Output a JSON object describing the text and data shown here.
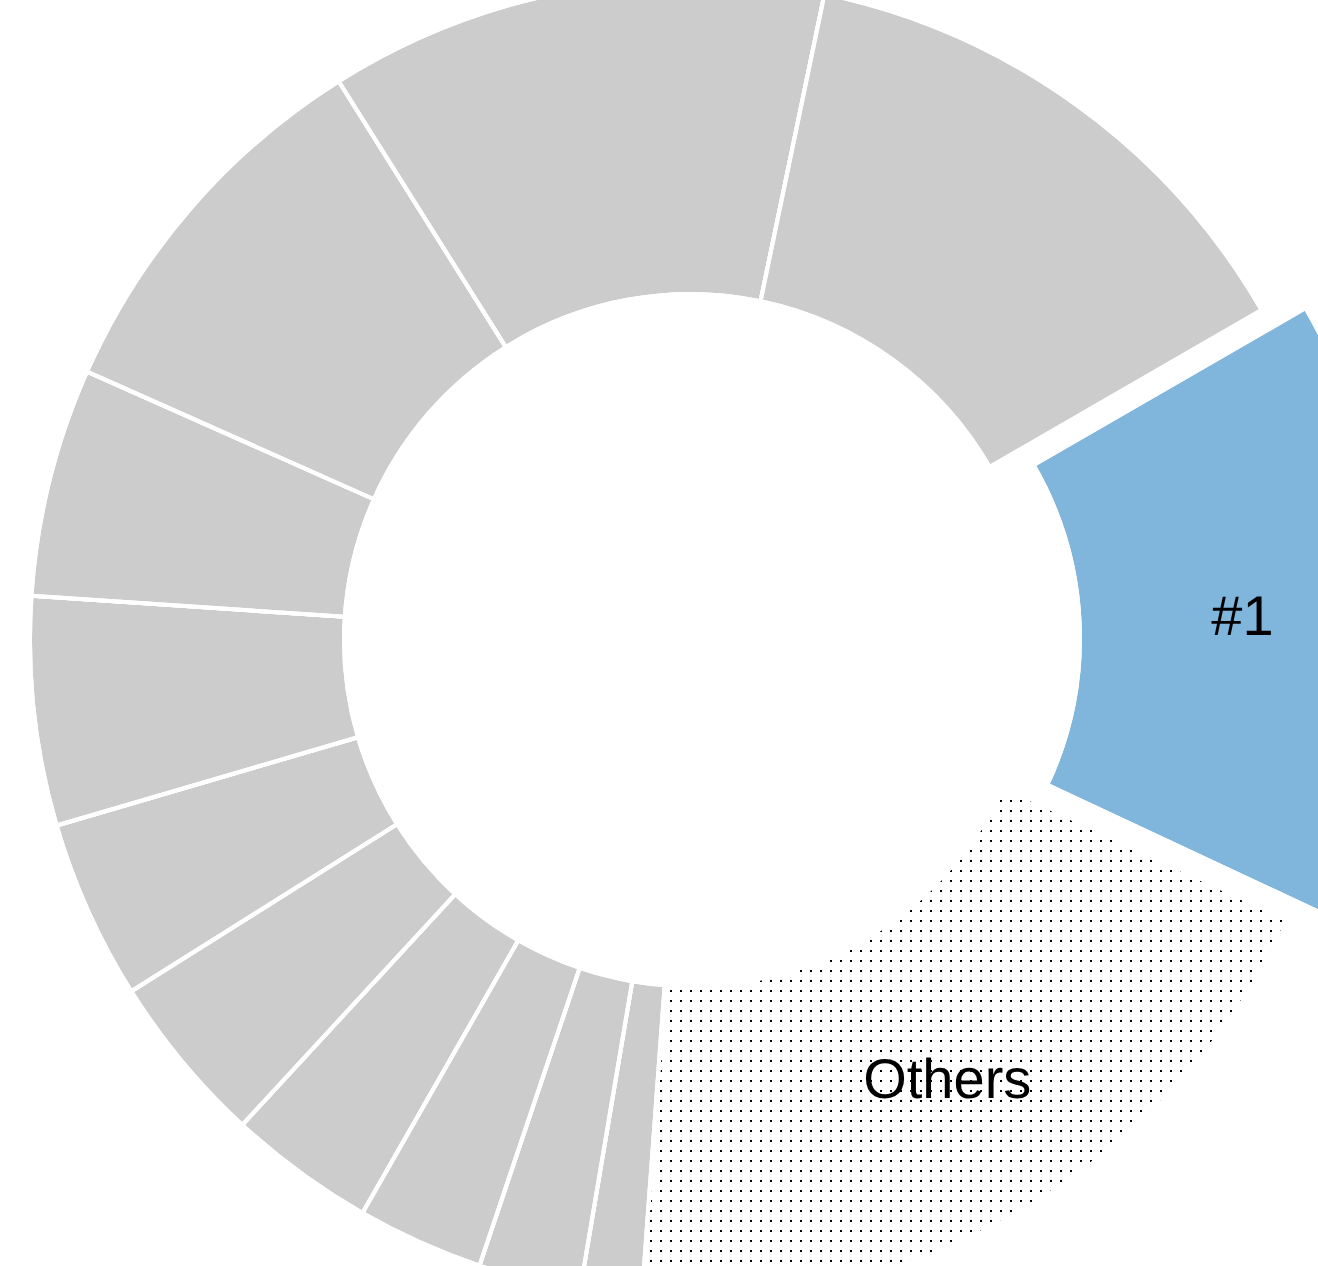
{
  "chart_data": {
    "type": "donut",
    "categories": [
      "#1",
      "Others",
      null,
      null,
      null,
      null,
      null,
      null,
      null,
      null,
      null,
      null,
      null
    ],
    "values": [
      15.3,
      19.2,
      1.5,
      2.5,
      3.1,
      3.6,
      4.2,
      4.4,
      5.6,
      5.6,
      9.4,
      12.2,
      13.4
    ],
    "colors": [
      "#80b5dc",
      "#ffffff",
      "#cccccc",
      "#cccccc",
      "#cccccc",
      "#cccccc",
      "#cccccc",
      "#cccccc",
      "#cccccc",
      "#cccccc",
      "#cccccc",
      "#cccccc",
      "#cccccc"
    ],
    "legend": false
  }
}
